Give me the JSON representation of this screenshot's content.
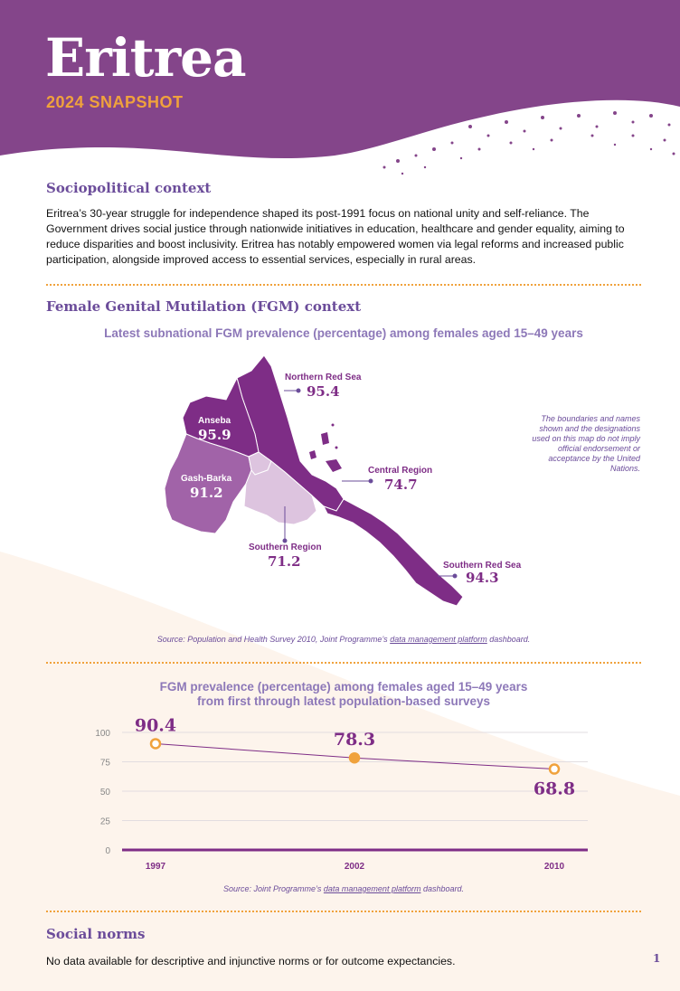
{
  "header": {
    "title": "Eritrea",
    "subtitle": "2024 SNAPSHOT"
  },
  "sociopolitical": {
    "heading": "Sociopolitical context",
    "text": "Eritrea’s 30-year struggle for independence shaped its post-1991 focus on national unity and self-reliance. The Government drives social justice through nationwide initiatives in education, healthcare and gender equality, aiming to reduce disparities and boost inclusivity. Eritrea has notably empowered women via legal reforms and increased public participation, alongside improved access to essential services, especially in rural areas."
  },
  "fgm_context": {
    "heading": "Female Genital Mutilation (FGM) context",
    "map_title": "Latest subnational FGM prevalence (percentage) among females aged 15–49 years",
    "regions": [
      {
        "name": "Northern Red Sea",
        "value": "95.4",
        "color": "#7e2d86"
      },
      {
        "name": "Anseba",
        "value": "95.9",
        "color": "#7e2d86"
      },
      {
        "name": "Gash-Barka",
        "value": "91.2",
        "color": "#a163a8"
      },
      {
        "name": "Central Region",
        "value": "74.7",
        "color": "#ddc4df"
      },
      {
        "name": "Southern Region",
        "value": "71.2",
        "color": "#ddc4df"
      },
      {
        "name": "Southern Red Sea",
        "value": "94.3",
        "color": "#7e2d86"
      }
    ],
    "disclaimer": "The boundaries and names shown and the designations used on this map do not imply official endorsement or acceptance by the United Nations.",
    "map_source_prefix": "Source: Population and Health Survey 2010, Joint Programme’s ",
    "map_source_link": "data management platform",
    "map_source_suffix": " dashboard."
  },
  "trend": {
    "title_line1": "FGM prevalence (percentage) among females aged 15–49 years",
    "title_line2": "from first through latest population-based surveys",
    "source_prefix": "Source: Joint Programme’s ",
    "source_link": "data management platform",
    "source_suffix": " dashboard."
  },
  "chart_data": {
    "type": "line",
    "title": "FGM prevalence (percentage) among females aged 15–49 years from first through latest population-based surveys",
    "x": [
      "1997",
      "2002",
      "2010"
    ],
    "values": [
      90.4,
      78.3,
      68.8
    ],
    "labels": [
      "90.4",
      "78.3",
      "68.8"
    ],
    "yticks": [
      "0",
      "25",
      "50",
      "75",
      "100"
    ],
    "ylim": [
      0,
      100
    ],
    "grid": true,
    "line_color": "#7e2d86",
    "marker_color": "#f0a23c"
  },
  "social_norms": {
    "heading": "Social norms",
    "text": "No data available for descriptive and injunctive norms or for outcome expectancies."
  },
  "page_number": "1",
  "colors": {
    "header_purple": "#84458a",
    "accent_orange": "#f0a23c",
    "heading_purple": "#6b4c9a",
    "cream": "#fdf4ec"
  }
}
